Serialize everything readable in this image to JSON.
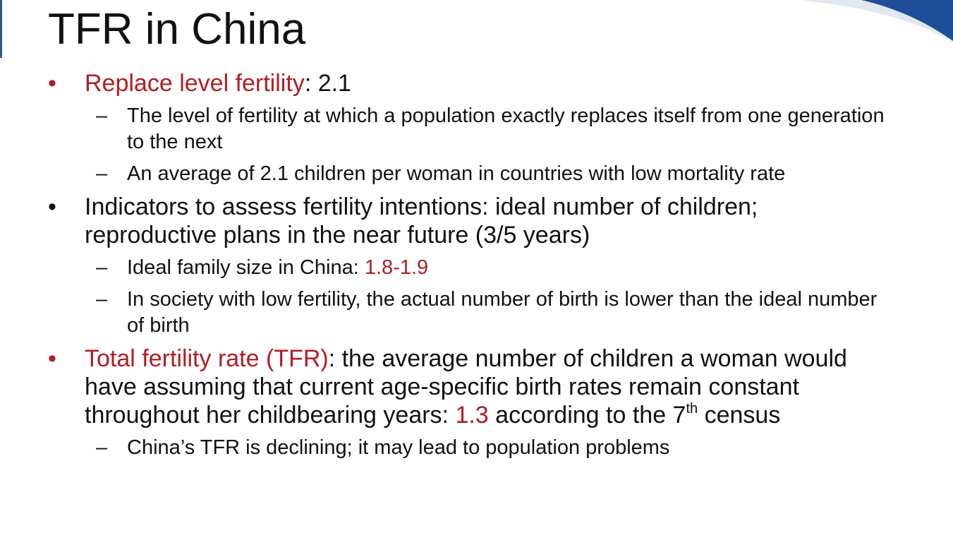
{
  "colors": {
    "accent_red": "#b01e24",
    "corner_blue": "#1f4e99",
    "text": "#111111"
  },
  "slide": {
    "title": "TFR in China",
    "bullet1": {
      "term": "Replace level fertility",
      "rest": ": 2.1",
      "sub1": "The level of fertility at which a population exactly replaces itself from one generation to the next",
      "sub2": "An average of 2.1 children per woman in countries with low mortality rate"
    },
    "bullet2": {
      "text": "Indicators to assess fertility intentions: ideal number of children; reproductive plans in the near future (3/5 years)",
      "sub1_prefix": "Ideal family size in China: ",
      "sub1_value": "1.8-1.9",
      "sub2": "In society with low fertility, the actual number of birth is lower than the ideal number of birth"
    },
    "bullet3": {
      "term": "Total fertility rate (TFR)",
      "text_a": ": the average number of children a woman would have assuming that current age-specific birth rates remain constant throughout her childbearing years: ",
      "value": "1.3",
      "text_b": " according to the 7",
      "superscript": "th",
      "text_c": " census",
      "sub1": "China’s TFR is declining; it may lead to population problems"
    },
    "bullet_symbol": "•",
    "dash_symbol": "–"
  }
}
